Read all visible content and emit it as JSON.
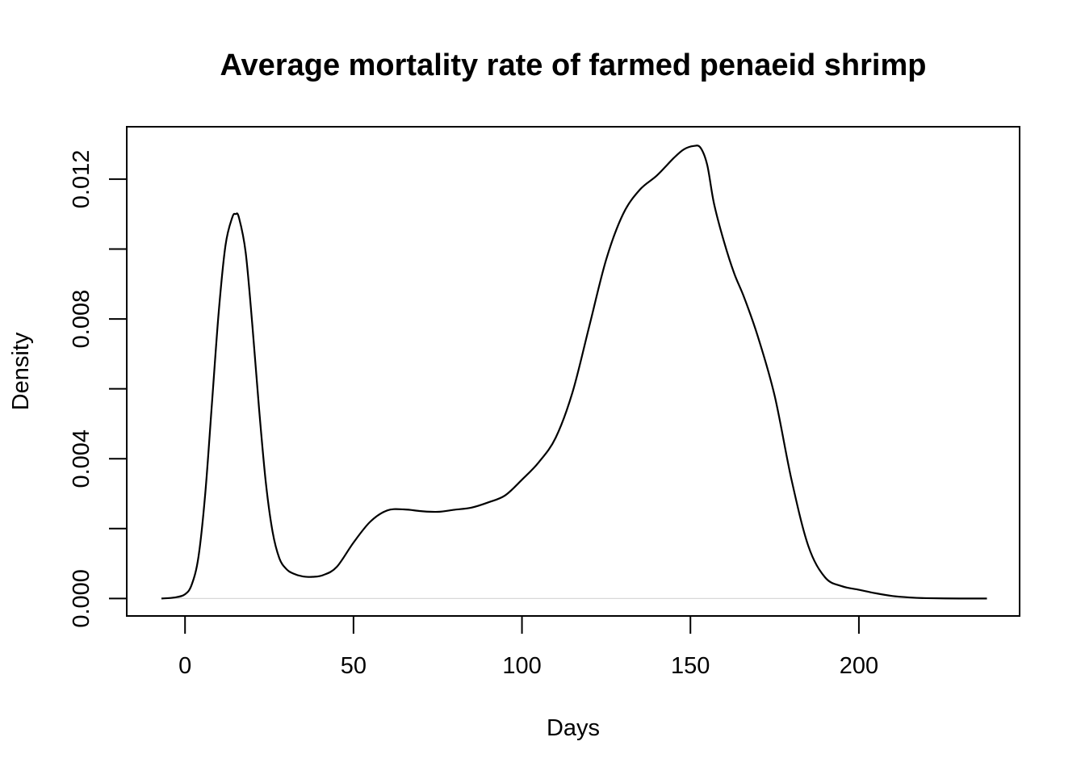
{
  "chart_data": {
    "type": "line",
    "title": "Average mortality rate of farmed penaeid shrimp",
    "xlabel": "Days",
    "ylabel": "Density",
    "xlim": [
      -17.3,
      247.7
    ],
    "ylim": [
      -0.0005,
      0.0135
    ],
    "x_ticks": [
      0,
      50,
      100,
      150,
      200
    ],
    "y_ticks": [
      0.0,
      0.002,
      0.004,
      0.006,
      0.008,
      0.01,
      0.012
    ],
    "y_tick_labels": [
      "0.000",
      "",
      "0.004",
      "",
      "0.008",
      "",
      "0.012"
    ],
    "grid": false,
    "legend": "none",
    "zero_reference_line": true,
    "colors": {
      "line": "#000000",
      "zero_line": "#d8d8d8"
    },
    "series": [
      {
        "x": [
          -7,
          -3,
          0,
          2,
          4,
          6,
          8,
          10,
          12,
          14,
          15,
          16,
          18,
          20,
          22,
          24,
          26,
          28,
          30,
          32,
          35,
          38,
          41,
          45,
          50,
          55,
          60,
          65,
          70,
          75,
          80,
          85,
          90,
          95,
          100,
          105,
          110,
          115,
          120,
          125,
          130,
          135,
          140,
          145,
          148,
          151,
          153,
          155,
          157,
          160,
          163,
          166,
          170,
          175,
          180,
          185,
          190,
          195,
          200,
          205,
          210,
          215,
          220,
          230,
          238
        ],
        "y": [
          0.0,
          3e-05,
          0.00012,
          0.0004,
          0.0012,
          0.003,
          0.0056,
          0.0082,
          0.0101,
          0.0109,
          0.011,
          0.0109,
          0.0099,
          0.0078,
          0.0054,
          0.0033,
          0.0019,
          0.00115,
          0.00085,
          0.00072,
          0.00063,
          0.00062,
          0.00067,
          0.0009,
          0.0016,
          0.0022,
          0.00252,
          0.00255,
          0.0025,
          0.00248,
          0.00254,
          0.0026,
          0.00275,
          0.00295,
          0.0034,
          0.0039,
          0.0046,
          0.0059,
          0.0078,
          0.0097,
          0.011,
          0.0117,
          0.0121,
          0.0126,
          0.01285,
          0.01295,
          0.0129,
          0.0124,
          0.0113,
          0.0102,
          0.0093,
          0.0086,
          0.0075,
          0.0058,
          0.0034,
          0.0015,
          0.0006,
          0.00035,
          0.00025,
          0.00015,
          7e-05,
          3e-05,
          1e-05,
          0.0,
          0.0
        ]
      }
    ]
  }
}
